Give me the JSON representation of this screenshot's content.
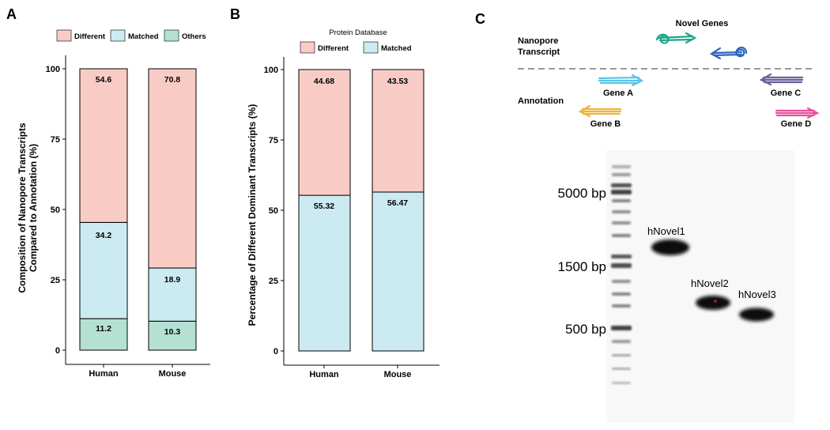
{
  "panels": {
    "a": "A",
    "b": "B",
    "c": "C"
  },
  "colors": {
    "different": "#F8CCC5",
    "matched": "#CCEAF1",
    "others": "#B5E1D3",
    "gene_a": "#5BC4E6",
    "gene_b": "#F0B43A",
    "gene_c": "#6A5FA0",
    "gene_d": "#E8509A",
    "novel_1": "#1FA58A",
    "novel_2": "#2E64BF"
  },
  "chart_data": [
    {
      "type": "bar",
      "stacked": true,
      "categories": [
        "Human",
        "Mouse"
      ],
      "series": [
        {
          "name": "Others",
          "values": [
            11.2,
            10.3
          ]
        },
        {
          "name": "Matched",
          "values": [
            34.2,
            18.9
          ]
        },
        {
          "name": "Different",
          "values": [
            54.6,
            70.8
          ]
        }
      ],
      "legend_order": [
        "Different",
        "Matched",
        "Others"
      ],
      "legend_position": "top",
      "ylabel": "Composition of Nanopore Transcripts Compared to Annotation (%)",
      "ylabel_lines": [
        "Composition of Nanopore Transcripts",
        "Compared to Annotation (%)"
      ],
      "yticks": [
        0,
        25,
        50,
        75,
        100
      ],
      "ylim": [
        0,
        100
      ],
      "grid": false
    },
    {
      "type": "bar",
      "stacked": true,
      "categories": [
        "Human",
        "Mouse"
      ],
      "legend_title": "Protein Database",
      "series": [
        {
          "name": "Matched",
          "values": [
            55.32,
            56.47
          ]
        },
        {
          "name": "Different",
          "values": [
            44.68,
            43.53
          ]
        }
      ],
      "legend_order": [
        "Different",
        "Matched"
      ],
      "legend_position": "top",
      "ylabel": "Percentage of Different Dominant Transcripts (%)",
      "yticks": [
        0,
        25,
        50,
        75,
        100
      ],
      "ylim": [
        0,
        100
      ],
      "grid": false
    }
  ],
  "labels_a": {
    "human_different": "54.6",
    "human_matched": "34.2",
    "human_others": "11.2",
    "mouse_different": "70.8",
    "mouse_matched": "18.9",
    "mouse_others": "10.3"
  },
  "labels_b": {
    "human_different": "44.68",
    "human_matched": "55.32",
    "mouse_different": "43.53",
    "mouse_matched": "56.47"
  },
  "diagram": {
    "novel_genes": "Novel Genes",
    "nanopore_line1": "Nanopore",
    "nanopore_line2": "Transcript",
    "annotation": "Annotation",
    "gene_a": "Gene A",
    "gene_b": "Gene B",
    "gene_c": "Gene C",
    "gene_d": "Gene D"
  },
  "gel": {
    "markers": [
      "5000 bp",
      "1500 bp",
      "500 bp"
    ],
    "bands": [
      "hNovel1",
      "hNovel2",
      "hNovel3"
    ]
  }
}
